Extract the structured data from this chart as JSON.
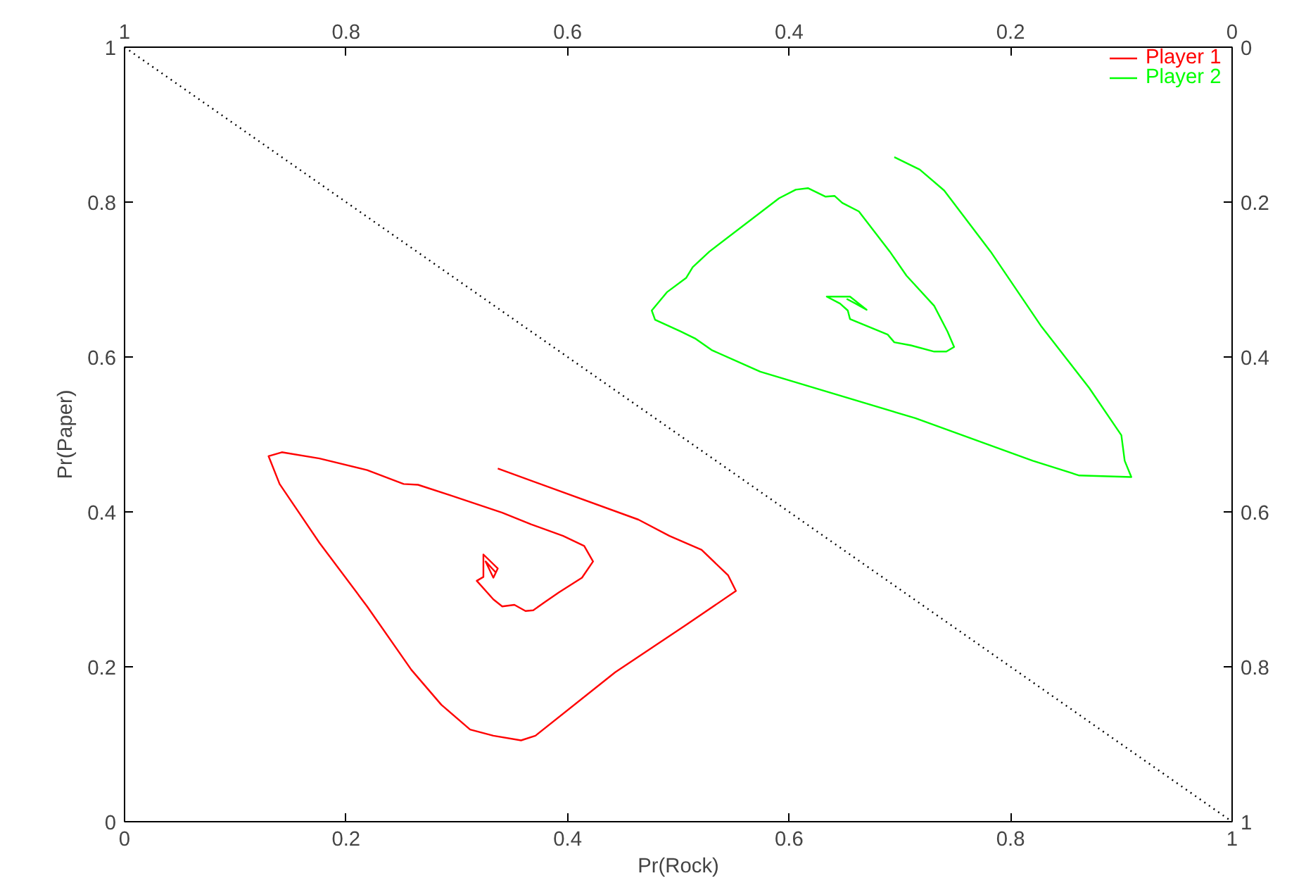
{
  "chart_data": {
    "type": "line",
    "xlabel": "Pr(Rock)",
    "ylabel": "Pr(Paper)",
    "xlim": [
      0,
      1
    ],
    "ylim": [
      0,
      1
    ],
    "x2lim": [
      1,
      0
    ],
    "y2lim": [
      1,
      0
    ],
    "xticks": [
      0,
      0.2,
      0.4,
      0.6,
      0.8,
      1
    ],
    "yticks": [
      0,
      0.2,
      0.4,
      0.6,
      0.8,
      1
    ],
    "x2ticks": [
      1,
      0.8,
      0.6,
      0.4,
      0.2,
      0
    ],
    "y2ticks": [
      0,
      0.2,
      0.4,
      0.6,
      0.8,
      1
    ],
    "grid": false,
    "legend": "top right",
    "marker": "none",
    "line_style": "solid",
    "series": [
      {
        "name": "Player 1",
        "color": "#ff0000",
        "x": [
          0.337,
          0.464,
          0.492,
          0.521,
          0.545,
          0.552,
          0.507,
          0.443,
          0.371,
          0.358,
          0.333,
          0.312,
          0.286,
          0.259,
          0.219,
          0.176,
          0.14,
          0.13,
          0.142,
          0.176,
          0.219,
          0.252,
          0.265,
          0.295,
          0.341,
          0.367,
          0.396,
          0.415,
          0.423,
          0.413,
          0.392,
          0.38,
          0.369,
          0.362,
          0.352,
          0.341,
          0.333,
          0.318,
          0.324,
          0.324,
          0.337,
          0.333,
          0.326,
          0.335
        ],
        "values": [
          0.456,
          0.39,
          0.369,
          0.351,
          0.318,
          0.298,
          0.254,
          0.193,
          0.111,
          0.105,
          0.111,
          0.119,
          0.151,
          0.196,
          0.278,
          0.36,
          0.436,
          0.472,
          0.477,
          0.469,
          0.454,
          0.436,
          0.435,
          0.421,
          0.399,
          0.384,
          0.369,
          0.356,
          0.336,
          0.315,
          0.296,
          0.284,
          0.273,
          0.272,
          0.28,
          0.278,
          0.287,
          0.311,
          0.316,
          0.345,
          0.327,
          0.315,
          0.336,
          0.322
        ]
      },
      {
        "name": "Player 2",
        "color": "#00ff00",
        "x": [
          0.695,
          0.718,
          0.74,
          0.782,
          0.828,
          0.871,
          0.9,
          0.903,
          0.909,
          0.862,
          0.82,
          0.714,
          0.574,
          0.53,
          0.515,
          0.502,
          0.479,
          0.476,
          0.49,
          0.507,
          0.513,
          0.528,
          0.591,
          0.606,
          0.617,
          0.633,
          0.641,
          0.648,
          0.663,
          0.691,
          0.706,
          0.731,
          0.743,
          0.749,
          0.742,
          0.731,
          0.71,
          0.695,
          0.689,
          0.672,
          0.655,
          0.653,
          0.646,
          0.634,
          0.655,
          0.67,
          0.66,
          0.652
        ],
        "values": [
          0.858,
          0.842,
          0.815,
          0.736,
          0.639,
          0.56,
          0.499,
          0.466,
          0.445,
          0.447,
          0.466,
          0.521,
          0.581,
          0.609,
          0.624,
          0.633,
          0.648,
          0.66,
          0.684,
          0.702,
          0.716,
          0.736,
          0.805,
          0.816,
          0.818,
          0.807,
          0.808,
          0.799,
          0.788,
          0.736,
          0.705,
          0.666,
          0.633,
          0.613,
          0.607,
          0.607,
          0.615,
          0.619,
          0.629,
          0.639,
          0.649,
          0.66,
          0.669,
          0.678,
          0.678,
          0.661,
          0.669,
          0.675
        ]
      },
      {
        "color": "#000000",
        "line_style": "dotted",
        "x": [
          0,
          1
        ],
        "values": [
          1,
          0
        ]
      }
    ]
  }
}
